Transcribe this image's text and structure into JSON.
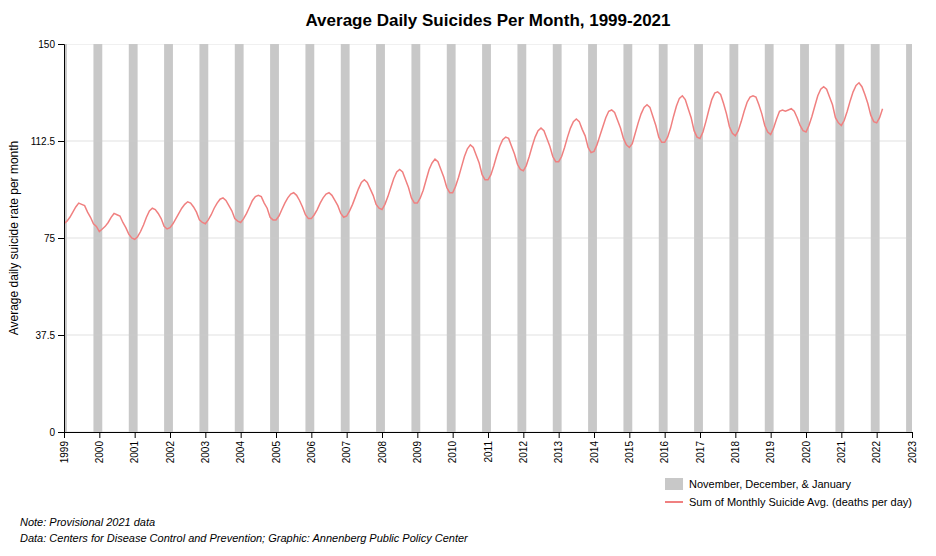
{
  "chart_data": {
    "type": "line",
    "title": "Average Daily Suicides Per Month, 1999-2021",
    "ylabel": "Average daily suicide rate per month",
    "annotations": [
      "Note: Provisional 2021 data",
      "Data: Centers for Disease Control and Prevention; Graphic: Annenberg Public Policy Center"
    ],
    "xlim": [
      1999,
      2023
    ],
    "xticks": [
      1999,
      2000,
      2001,
      2002,
      2003,
      2004,
      2005,
      2006,
      2007,
      2008,
      2009,
      2010,
      2011,
      2012,
      2013,
      2014,
      2015,
      2016,
      2017,
      2018,
      2019,
      2020,
      2021,
      2022,
      2023
    ],
    "ylim": [
      0,
      150
    ],
    "yticks": [
      0,
      37.5,
      75,
      112.5,
      150
    ],
    "grid": true,
    "legend": "lower right",
    "bands": {
      "name": "November, December, & January",
      "color": "#c8c8c8",
      "x0": [
        1998.8333,
        1999.8333,
        2000.8333,
        2001.8333,
        2002.8333,
        2003.8333,
        2004.8333,
        2005.8333,
        2006.8333,
        2007.8333,
        2008.8333,
        2009.8333,
        2010.8333,
        2011.8333,
        2012.8333,
        2013.8333,
        2014.8333,
        2015.8333,
        2016.8333,
        2017.8333,
        2018.8333,
        2019.8333,
        2020.8333,
        2021.8333,
        2022.8333
      ],
      "x1": [
        1999.0833,
        2000.0833,
        2001.0833,
        2002.0833,
        2003.0833,
        2004.0833,
        2005.0833,
        2006.0833,
        2007.0833,
        2008.0833,
        2009.0833,
        2010.0833,
        2011.0833,
        2012.0833,
        2013.0833,
        2014.0833,
        2015.0833,
        2016.0833,
        2017.0833,
        2018.0833,
        2019.0833,
        2020.0833,
        2021.0833,
        2022.0833,
        2023.0833
      ]
    },
    "x": [
      1999,
      1999.0833,
      1999.1667,
      1999.25,
      1999.3333,
      1999.4167,
      1999.5,
      1999.5833,
      1999.6667,
      1999.75,
      1999.8333,
      1999.9167,
      2000,
      2000.0833,
      2000.1667,
      2000.25,
      2000.3333,
      2000.4167,
      2000.5,
      2000.5833,
      2000.6667,
      2000.75,
      2000.8333,
      2000.9167,
      2001,
      2001.0833,
      2001.1667,
      2001.25,
      2001.3333,
      2001.4167,
      2001.5,
      2001.5833,
      2001.6667,
      2001.75,
      2001.8333,
      2001.9167,
      2002,
      2002.0833,
      2002.1667,
      2002.25,
      2002.3333,
      2002.4167,
      2002.5,
      2002.5833,
      2002.6667,
      2002.75,
      2002.8333,
      2002.9167,
      2003,
      2003.0833,
      2003.1667,
      2003.25,
      2003.3333,
      2003.4167,
      2003.5,
      2003.5833,
      2003.6667,
      2003.75,
      2003.8333,
      2003.9167,
      2004,
      2004.0833,
      2004.1667,
      2004.25,
      2004.3333,
      2004.4167,
      2004.5,
      2004.5833,
      2004.6667,
      2004.75,
      2004.8333,
      2004.9167,
      2005,
      2005.0833,
      2005.1667,
      2005.25,
      2005.3333,
      2005.4167,
      2005.5,
      2005.5833,
      2005.6667,
      2005.75,
      2005.8333,
      2005.9167,
      2006,
      2006.0833,
      2006.1667,
      2006.25,
      2006.3333,
      2006.4167,
      2006.5,
      2006.5833,
      2006.6667,
      2006.75,
      2006.8333,
      2006.9167,
      2007,
      2007.0833,
      2007.1667,
      2007.25,
      2007.3333,
      2007.4167,
      2007.5,
      2007.5833,
      2007.6667,
      2007.75,
      2007.8333,
      2007.9167,
      2008,
      2008.0833,
      2008.1667,
      2008.25,
      2008.3333,
      2008.4167,
      2008.5,
      2008.5833,
      2008.6667,
      2008.75,
      2008.8333,
      2008.9167,
      2009,
      2009.0833,
      2009.1667,
      2009.25,
      2009.3333,
      2009.4167,
      2009.5,
      2009.5833,
      2009.6667,
      2009.75,
      2009.8333,
      2009.9167,
      2010,
      2010.0833,
      2010.1667,
      2010.25,
      2010.3333,
      2010.4167,
      2010.5,
      2010.5833,
      2010.6667,
      2010.75,
      2010.8333,
      2010.9167,
      2011,
      2011.0833,
      2011.1667,
      2011.25,
      2011.3333,
      2011.4167,
      2011.5,
      2011.5833,
      2011.6667,
      2011.75,
      2011.8333,
      2011.9167,
      2012,
      2012.0833,
      2012.1667,
      2012.25,
      2012.3333,
      2012.4167,
      2012.5,
      2012.5833,
      2012.6667,
      2012.75,
      2012.8333,
      2012.9167,
      2013,
      2013.0833,
      2013.1667,
      2013.25,
      2013.3333,
      2013.4167,
      2013.5,
      2013.5833,
      2013.6667,
      2013.75,
      2013.8333,
      2013.9167,
      2014,
      2014.0833,
      2014.1667,
      2014.25,
      2014.3333,
      2014.4167,
      2014.5,
      2014.5833,
      2014.6667,
      2014.75,
      2014.8333,
      2014.9167,
      2015,
      2015.0833,
      2015.1667,
      2015.25,
      2015.3333,
      2015.4167,
      2015.5,
      2015.5833,
      2015.6667,
      2015.75,
      2015.8333,
      2015.9167,
      2016,
      2016.0833,
      2016.1667,
      2016.25,
      2016.3333,
      2016.4167,
      2016.5,
      2016.5833,
      2016.6667,
      2016.75,
      2016.8333,
      2016.9167,
      2017,
      2017.0833,
      2017.1667,
      2017.25,
      2017.3333,
      2017.4167,
      2017.5,
      2017.5833,
      2017.6667,
      2017.75,
      2017.8333,
      2017.9167,
      2018,
      2018.0833,
      2018.1667,
      2018.25,
      2018.3333,
      2018.4167,
      2018.5,
      2018.5833,
      2018.6667,
      2018.75,
      2018.8333,
      2018.9167,
      2019,
      2019.0833,
      2019.1667,
      2019.25,
      2019.3333,
      2019.4167,
      2019.5,
      2019.5833,
      2019.6667,
      2019.75,
      2019.8333,
      2019.9167,
      2020,
      2020.0833,
      2020.1667,
      2020.25,
      2020.3333,
      2020.4167,
      2020.5,
      2020.5833,
      2020.6667,
      2020.75,
      2020.8333,
      2020.9167,
      2021,
      2021.0833,
      2021.1667,
      2021.25,
      2021.3333,
      2021.4167,
      2021.5,
      2021.5833,
      2021.6667,
      2021.75,
      2021.8333,
      2021.9167,
      2022,
      2022.0833,
      2022.1667
    ],
    "series": [
      {
        "name": "Sum of Monthly Suicide Avg. (deaths per day)",
        "color": "#f08080",
        "values": [
          80.5,
          81.5,
          83.0,
          85.0,
          87.0,
          88.5,
          88.0,
          87.5,
          85.0,
          83.0,
          80.5,
          79.5,
          77.5,
          78.5,
          79.5,
          81.0,
          83.0,
          84.5,
          84.0,
          83.5,
          81.0,
          79.0,
          76.5,
          75.0,
          74.5,
          75.5,
          77.5,
          80.0,
          83.0,
          85.5,
          86.5,
          86.0,
          84.5,
          82.5,
          79.5,
          78.5,
          79.0,
          80.5,
          82.5,
          84.5,
          86.5,
          88.0,
          89.0,
          88.5,
          87.0,
          85.0,
          82.0,
          81.0,
          80.5,
          82.0,
          84.0,
          86.5,
          88.5,
          90.0,
          90.5,
          89.5,
          87.5,
          85.5,
          82.5,
          81.5,
          81.0,
          82.5,
          84.5,
          87.0,
          89.5,
          91.0,
          91.5,
          91.0,
          88.5,
          86.5,
          83.0,
          82.0,
          82.0,
          83.5,
          86.0,
          88.5,
          90.5,
          92.0,
          92.5,
          91.5,
          89.5,
          87.0,
          84.0,
          82.5,
          82.5,
          84.0,
          86.0,
          88.5,
          90.5,
          92.0,
          92.5,
          91.5,
          89.5,
          87.5,
          84.5,
          83.0,
          83.5,
          85.5,
          88.0,
          91.0,
          94.0,
          96.5,
          97.5,
          96.5,
          94.0,
          91.5,
          88.0,
          86.5,
          86.0,
          88.0,
          91.0,
          94.5,
          98.0,
          100.5,
          101.5,
          100.5,
          97.5,
          94.5,
          90.5,
          88.5,
          88.5,
          90.5,
          93.5,
          97.5,
          101.5,
          104.0,
          105.5,
          104.5,
          101.5,
          98.5,
          94.5,
          92.5,
          92.5,
          95.0,
          98.5,
          102.5,
          106.5,
          109.5,
          111.0,
          110.0,
          107.0,
          104.0,
          99.5,
          97.5,
          97.5,
          99.5,
          103.0,
          107.0,
          110.5,
          113.0,
          114.0,
          113.5,
          110.5,
          107.5,
          103.5,
          101.5,
          101.0,
          103.0,
          106.5,
          110.5,
          114.0,
          116.5,
          117.5,
          116.5,
          113.5,
          110.5,
          106.5,
          104.5,
          104.5,
          106.5,
          110.0,
          114.0,
          117.5,
          120.0,
          121.0,
          120.0,
          117.0,
          114.5,
          110.0,
          108.0,
          108.5,
          111.0,
          114.5,
          118.0,
          121.5,
          124.0,
          124.5,
          123.5,
          120.5,
          117.5,
          113.5,
          111.0,
          110.0,
          111.5,
          115.5,
          119.5,
          123.0,
          125.5,
          126.5,
          125.5,
          122.0,
          118.5,
          114.0,
          112.0,
          112.0,
          114.0,
          117.5,
          122.0,
          126.0,
          129.0,
          130.0,
          128.5,
          125.0,
          121.5,
          116.5,
          114.0,
          113.5,
          116.0,
          120.0,
          124.5,
          128.5,
          131.0,
          131.5,
          130.5,
          127.0,
          123.0,
          118.0,
          115.5,
          114.5,
          116.5,
          120.0,
          124.0,
          127.5,
          129.5,
          130.0,
          129.5,
          126.5,
          123.0,
          118.5,
          116.0,
          115.0,
          117.5,
          121.0,
          124.0,
          124.5,
          124.0,
          124.5,
          125.0,
          124.0,
          121.5,
          118.5,
          116.5,
          116.0,
          118.5,
          122.0,
          126.0,
          130.0,
          132.5,
          133.5,
          132.5,
          129.5,
          126.5,
          121.5,
          119.5,
          118.5,
          120.5,
          124.0,
          128.0,
          131.5,
          134.0,
          135.0,
          133.5,
          130.5,
          127.0,
          122.5,
          120.0,
          119.5,
          121.5,
          125.0
        ]
      }
    ]
  }
}
